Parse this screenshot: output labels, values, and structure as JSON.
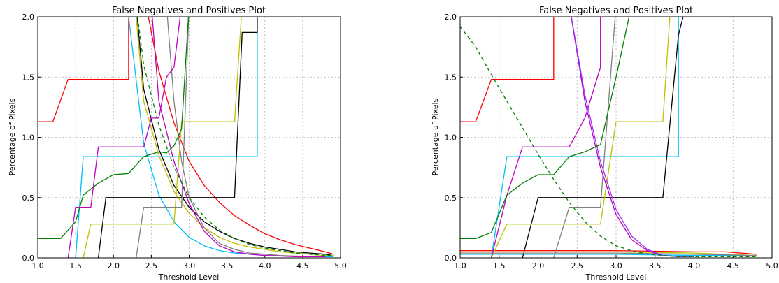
{
  "chart_data": [
    {
      "type": "line",
      "title": "False Negatives and Positives Plot",
      "xlabel": "Threshold Level",
      "ylabel": "Percentage of Pixels",
      "xlim": [
        1.0,
        5.0
      ],
      "ylim": [
        0.0,
        2.0
      ],
      "xticks": [
        "1.0",
        "1.5",
        "2.0",
        "2.5",
        "3.0",
        "3.5",
        "4.0",
        "4.5",
        "5.0"
      ],
      "yticks": [
        "0.0",
        "0.5",
        "1.0",
        "1.5",
        "2.0"
      ],
      "grid": true,
      "series": [
        {
          "color": "#ff0000",
          "dashed": false,
          "x": [
            1.0,
            1.2,
            1.4,
            2.2,
            2.2,
            2.4,
            2.6,
            2.8,
            3.0,
            3.2,
            3.4,
            3.6,
            3.8,
            4.0,
            4.2,
            4.4,
            4.6,
            4.8,
            4.9
          ],
          "y": [
            1.13,
            1.13,
            1.48,
            1.48,
            2.2,
            2.2,
            1.55,
            1.12,
            0.8,
            0.6,
            0.46,
            0.35,
            0.27,
            0.2,
            0.15,
            0.11,
            0.08,
            0.05,
            0.03
          ]
        },
        {
          "color": "#00bfff",
          "dashed": false,
          "x": [
            1.5,
            1.6,
            3.9,
            3.9
          ],
          "y": [
            0.0,
            0.84,
            0.84,
            2.1
          ]
        },
        {
          "color": "#00bfff",
          "dashed": false,
          "x": [
            2.2,
            2.4,
            2.6,
            2.8,
            3.0,
            3.2,
            3.4,
            3.6,
            3.8,
            4.0,
            4.2,
            4.4,
            4.6,
            4.8,
            4.9
          ],
          "y": [
            2.0,
            0.95,
            0.52,
            0.3,
            0.17,
            0.1,
            0.06,
            0.04,
            0.03,
            0.02,
            0.015,
            0.012,
            0.01,
            0.01,
            0.01
          ]
        },
        {
          "color": "#000000",
          "dashed": false,
          "x": [
            1.8,
            1.9,
            3.6,
            3.7,
            3.9,
            3.9
          ],
          "y": [
            0.0,
            0.5,
            0.5,
            1.87,
            1.87,
            2.1
          ]
        },
        {
          "color": "#000000",
          "dashed": false,
          "x": [
            2.3,
            2.4,
            2.6,
            2.8,
            3.0,
            3.2,
            3.4,
            3.6,
            3.8,
            4.0,
            4.2,
            4.4,
            4.6,
            4.8,
            4.9
          ],
          "y": [
            2.1,
            1.4,
            0.9,
            0.6,
            0.42,
            0.3,
            0.22,
            0.16,
            0.12,
            0.09,
            0.07,
            0.05,
            0.04,
            0.03,
            0.02
          ]
        },
        {
          "color": "#bfbf00",
          "dashed": false,
          "x": [
            1.6,
            1.7,
            2.8,
            2.9,
            3.6,
            3.7
          ],
          "y": [
            0.0,
            0.28,
            0.28,
            1.13,
            1.13,
            2.1
          ]
        },
        {
          "color": "#bfbf00",
          "dashed": false,
          "x": [
            2.3,
            2.4,
            2.6,
            2.8,
            3.0,
            3.2,
            3.4,
            3.6,
            3.8,
            4.0,
            4.2,
            4.4,
            4.6,
            4.8,
            4.9
          ],
          "y": [
            2.0,
            1.3,
            0.85,
            0.55,
            0.37,
            0.25,
            0.17,
            0.12,
            0.09,
            0.07,
            0.05,
            0.04,
            0.03,
            0.02,
            0.02
          ]
        },
        {
          "color": "#808080",
          "dashed": false,
          "x": [
            2.3,
            2.4,
            2.9,
            3.0
          ],
          "y": [
            0.0,
            0.42,
            0.42,
            2.1
          ]
        },
        {
          "color": "#808080",
          "dashed": false,
          "x": [
            2.7,
            2.8,
            2.9,
            3.0,
            3.2,
            3.4,
            3.6,
            3.8,
            4.0,
            4.2,
            4.4,
            4.6,
            4.8
          ],
          "y": [
            2.1,
            1.3,
            0.8,
            0.5,
            0.25,
            0.12,
            0.07,
            0.04,
            0.03,
            0.02,
            0.015,
            0.01,
            0.01
          ]
        },
        {
          "color": "#bf00bf",
          "dashed": false,
          "x": [
            1.4,
            1.5,
            1.7,
            1.8,
            2.4,
            2.5,
            2.6,
            2.7,
            2.8,
            2.9
          ],
          "y": [
            0.0,
            0.42,
            0.42,
            0.92,
            0.92,
            1.16,
            1.16,
            1.5,
            1.58,
            2.1
          ]
        },
        {
          "color": "#bf00bf",
          "dashed": false,
          "x": [
            2.5,
            2.6,
            2.8,
            3.0,
            3.2,
            3.4,
            3.6,
            3.8,
            4.0,
            4.2,
            4.4,
            4.6,
            4.8
          ],
          "y": [
            2.1,
            1.3,
            0.8,
            0.45,
            0.22,
            0.1,
            0.05,
            0.03,
            0.02,
            0.015,
            0.01,
            0.01,
            0.01
          ]
        },
        {
          "color": "#008000",
          "dashed": false,
          "x": [
            1.0,
            1.3,
            1.5,
            1.6,
            1.8,
            2.0,
            2.2,
            2.4,
            2.6,
            2.7,
            2.8,
            2.9,
            3.0
          ],
          "y": [
            0.16,
            0.16,
            0.3,
            0.52,
            0.62,
            0.69,
            0.7,
            0.84,
            0.88,
            0.87,
            0.93,
            1.07,
            2.1
          ]
        },
        {
          "color": "#008000",
          "dashed": true,
          "x": [
            2.3,
            2.4,
            2.6,
            2.8,
            3.0,
            3.2,
            3.4,
            3.6,
            3.8,
            4.0,
            4.2,
            4.4,
            4.6,
            4.8,
            4.9
          ],
          "y": [
            2.1,
            1.6,
            1.1,
            0.75,
            0.5,
            0.34,
            0.23,
            0.16,
            0.11,
            0.08,
            0.06,
            0.04,
            0.03,
            0.02,
            0.02
          ]
        }
      ]
    },
    {
      "type": "line",
      "title": "False Negatives and Positives Plot",
      "xlabel": "Threshold Level",
      "ylabel": "Percentage of Pixels",
      "xlim": [
        1.0,
        5.0
      ],
      "ylim": [
        0.0,
        2.0
      ],
      "xticks": [
        "1.0",
        "1.5",
        "2.0",
        "2.5",
        "3.0",
        "3.5",
        "4.0",
        "4.5",
        "5.0"
      ],
      "yticks": [
        "0.0",
        "0.5",
        "1.0",
        "1.5",
        "2.0"
      ],
      "grid": true,
      "series": [
        {
          "color": "#ff0000",
          "dashed": false,
          "x": [
            1.0,
            1.2,
            1.4,
            2.2,
            2.2
          ],
          "y": [
            1.13,
            1.13,
            1.48,
            1.48,
            2.1
          ]
        },
        {
          "color": "#ff0000",
          "dashed": false,
          "x": [
            1.0,
            2.0,
            3.0,
            4.0,
            4.4,
            4.6,
            4.8
          ],
          "y": [
            0.06,
            0.06,
            0.06,
            0.05,
            0.05,
            0.04,
            0.03
          ]
        },
        {
          "color": "#00bfff",
          "dashed": false,
          "x": [
            1.4,
            1.6,
            3.8,
            3.8
          ],
          "y": [
            0.0,
            0.84,
            0.84,
            2.1
          ]
        },
        {
          "color": "#00bfff",
          "dashed": false,
          "x": [
            1.0,
            2.0,
            3.0,
            4.0,
            4.8
          ],
          "y": [
            0.03,
            0.03,
            0.03,
            0.02,
            0.02
          ]
        },
        {
          "color": "#000000",
          "dashed": false,
          "x": [
            1.8,
            2.0,
            3.6,
            3.8,
            3.9
          ],
          "y": [
            0.0,
            0.5,
            0.5,
            1.85,
            2.1
          ]
        },
        {
          "color": "#bfbf00",
          "dashed": false,
          "x": [
            1.4,
            1.6,
            2.8,
            3.0,
            3.6,
            3.7
          ],
          "y": [
            0.0,
            0.28,
            0.28,
            1.13,
            1.13,
            2.1
          ]
        },
        {
          "color": "#bfbf00",
          "dashed": false,
          "x": [
            1.0,
            2.0,
            3.0,
            4.0,
            4.8
          ],
          "y": [
            0.05,
            0.05,
            0.05,
            0.04,
            0.02
          ]
        },
        {
          "color": "#808080",
          "dashed": false,
          "x": [
            2.2,
            2.4,
            2.8,
            3.0
          ],
          "y": [
            0.0,
            0.42,
            0.42,
            2.1
          ]
        },
        {
          "color": "#808080",
          "dashed": false,
          "x": [
            1.0,
            2.0,
            3.0,
            4.0,
            4.8
          ],
          "y": [
            0.04,
            0.04,
            0.04,
            0.03,
            0.02
          ]
        },
        {
          "color": "#bf00bf",
          "dashed": false,
          "x": [
            1.4,
            1.6,
            1.8,
            2.4,
            2.6,
            2.8,
            2.8
          ],
          "y": [
            0.0,
            0.52,
            0.92,
            0.92,
            1.16,
            1.58,
            2.1
          ]
        },
        {
          "color": "#bf00bf",
          "dashed": false,
          "x": [
            2.4,
            2.6,
            2.8,
            3.0,
            3.2,
            3.4,
            3.6,
            3.8,
            4.0
          ],
          "y": [
            2.1,
            1.3,
            0.75,
            0.36,
            0.15,
            0.06,
            0.02,
            0.01,
            0.01
          ]
        },
        {
          "color": "#9b30ff",
          "dashed": false,
          "x": [
            2.4,
            2.6,
            2.8,
            3.0,
            3.2,
            3.4,
            3.6,
            3.8,
            4.0
          ],
          "y": [
            2.1,
            1.35,
            0.8,
            0.4,
            0.18,
            0.07,
            0.02,
            0.01,
            0.01
          ]
        },
        {
          "color": "#008000",
          "dashed": false,
          "x": [
            1.0,
            1.2,
            1.4,
            1.6,
            1.8,
            2.0,
            2.2,
            2.4,
            2.6,
            2.8,
            3.0,
            3.2
          ],
          "y": [
            0.16,
            0.16,
            0.21,
            0.52,
            0.62,
            0.69,
            0.69,
            0.84,
            0.88,
            0.94,
            1.5,
            2.1
          ]
        },
        {
          "color": "#008000",
          "dashed": true,
          "x": [
            1.0,
            1.2,
            1.4,
            1.6,
            1.8,
            2.0,
            2.2,
            2.4,
            2.6,
            2.8,
            3.0,
            3.2,
            3.4,
            3.6,
            3.8,
            4.0,
            4.2,
            4.4,
            4.6,
            4.8
          ],
          "y": [
            1.92,
            1.75,
            1.52,
            1.3,
            1.08,
            0.86,
            0.65,
            0.46,
            0.3,
            0.18,
            0.1,
            0.06,
            0.03,
            0.02,
            0.01,
            0.01,
            0.01,
            0.01,
            0.01,
            0.01
          ]
        }
      ]
    }
  ]
}
